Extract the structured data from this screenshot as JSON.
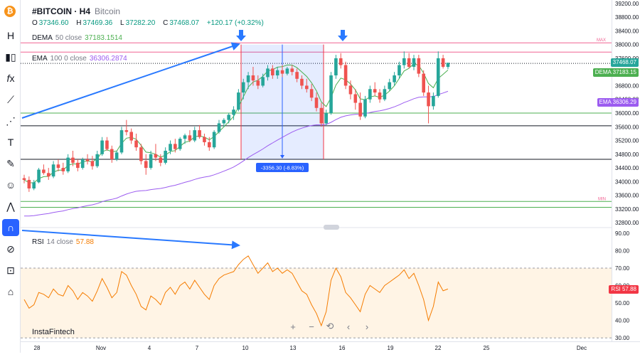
{
  "header": {
    "symbol": "#BITCOIN · H4",
    "description": "Bitcoin",
    "ohlc": [
      {
        "k": "O",
        "v": "37346.60"
      },
      {
        "k": "H",
        "v": "37469.36"
      },
      {
        "k": "L",
        "v": "37282.20"
      },
      {
        "k": "C",
        "v": "37468.07"
      }
    ],
    "change": "+120.17 (+0.32%)"
  },
  "legends": {
    "dema": {
      "name": "DEMA",
      "params": "50 close",
      "value": "37183.1514",
      "color": "#4caf50"
    },
    "ema": {
      "name": "EMA",
      "params": "100 0 close",
      "value": "36306.2874",
      "color": "#9c5cf0"
    },
    "rsi": {
      "name": "RSI",
      "params": "14 close",
      "value": "57.88",
      "color": "#f57c00"
    }
  },
  "brand": "InstaFintech",
  "toolbar": [
    "bitcoin-logo",
    "timeframe-icon",
    "candles-icon",
    "fx-icon",
    "trendline-icon",
    "fib-icon",
    "text-icon",
    "brush-icon",
    "emoji-icon",
    "pattern-icon",
    "magnet-icon",
    "eye-off-icon",
    "lock-icon",
    "trash-icon"
  ],
  "measure_label": "-3356.30 (-8.83%)",
  "level_labels": {
    "max": "MAX",
    "min": "MIN"
  },
  "price_tags": [
    {
      "name": "last-price",
      "label": "37468.07",
      "value": 37468.07,
      "color": "#26a69a"
    },
    {
      "name": "dema",
      "label": "DEMA    37183.15",
      "value": 37183.15,
      "color": "#4caf50"
    },
    {
      "name": "ema",
      "label": "EMA    36306.29",
      "value": 36306.29,
      "color": "#9c5cf0"
    }
  ],
  "rsi_tag": {
    "label": "RSI    57.88",
    "value": 57.88,
    "color": "#f23645"
  },
  "zoom_controls": [
    "+",
    "−",
    "⟲",
    "‹",
    "›"
  ],
  "chart_data": {
    "type": "candlestick",
    "price_axis": {
      "ticks": [
        32800,
        33200,
        33600,
        34000,
        34400,
        34800,
        35200,
        35600,
        36000,
        36400,
        36800,
        37200,
        37600,
        38000,
        38400,
        38800,
        39200
      ],
      "ylim": [
        32700,
        39300
      ]
    },
    "rsi_axis": {
      "ticks": [
        30,
        40,
        50,
        60,
        70,
        80,
        90
      ],
      "ylim": [
        28,
        92
      ],
      "bands": [
        30,
        70
      ]
    },
    "x_ticks": [
      "28",
      "Nov",
      "4",
      "7",
      "10",
      "13",
      "16",
      "19",
      "22",
      "25",
      "Dec"
    ],
    "horizontal_levels": [
      {
        "price": 38050,
        "label": "MAX",
        "color": "#f06292"
      },
      {
        "price": 37780,
        "color": "#f06292"
      },
      {
        "price": 37450,
        "color": "#131722",
        "dotted": true
      },
      {
        "price": 36000,
        "color": "#4caf50"
      },
      {
        "price": 35630,
        "color": "#131722"
      },
      {
        "price": 34650,
        "color": "#131722"
      },
      {
        "price": 33420,
        "label": "MIN",
        "color": "#4caf50"
      },
      {
        "price": 33250,
        "color": "#4caf50"
      }
    ],
    "measurement": {
      "from": 38000,
      "to": 34650,
      "label": "-3356.30 (-8.83%)"
    },
    "candles": [
      [
        34100,
        34200,
        33950,
        34050
      ],
      [
        34050,
        34150,
        33700,
        33800
      ],
      [
        33800,
        34050,
        33750,
        33980
      ],
      [
        33980,
        34400,
        33950,
        34350
      ],
      [
        34350,
        34500,
        34200,
        34250
      ],
      [
        34250,
        34400,
        34050,
        34150
      ],
      [
        34150,
        34600,
        34100,
        34500
      ],
      [
        34500,
        34650,
        34300,
        34400
      ],
      [
        34400,
        34550,
        34200,
        34300
      ],
      [
        34300,
        34800,
        34250,
        34700
      ],
      [
        34700,
        34900,
        34450,
        34550
      ],
      [
        34550,
        34650,
        34300,
        34400
      ],
      [
        34400,
        34700,
        34350,
        34650
      ],
      [
        34650,
        34800,
        34500,
        34600
      ],
      [
        34600,
        34750,
        34350,
        34450
      ],
      [
        34450,
        34900,
        34400,
        34800
      ],
      [
        34800,
        35300,
        34750,
        35200
      ],
      [
        35200,
        35300,
        34900,
        34950
      ],
      [
        34950,
        35050,
        34550,
        34650
      ],
      [
        34650,
        34900,
        34600,
        34850
      ],
      [
        34850,
        35600,
        34800,
        35500
      ],
      [
        35500,
        35800,
        35350,
        35450
      ],
      [
        35450,
        35550,
        35100,
        35200
      ],
      [
        35200,
        35400,
        34900,
        35000
      ],
      [
        35000,
        35100,
        34500,
        34600
      ],
      [
        34600,
        34800,
        34200,
        34400
      ],
      [
        34400,
        34900,
        34350,
        34800
      ],
      [
        34800,
        35100,
        34600,
        34700
      ],
      [
        34700,
        34800,
        34450,
        34550
      ],
      [
        34550,
        35000,
        34500,
        34900
      ],
      [
        34900,
        35200,
        34800,
        35100
      ],
      [
        35100,
        35250,
        34850,
        34950
      ],
      [
        34950,
        35300,
        34900,
        35250
      ],
      [
        35250,
        35400,
        35100,
        35350
      ],
      [
        35350,
        35500,
        35150,
        35200
      ],
      [
        35200,
        35600,
        35150,
        35500
      ],
      [
        35500,
        35650,
        35250,
        35300
      ],
      [
        35300,
        35400,
        35050,
        35150
      ],
      [
        35150,
        35300,
        34900,
        35000
      ],
      [
        35000,
        35500,
        34950,
        35450
      ],
      [
        35450,
        35800,
        35400,
        35700
      ],
      [
        35700,
        35850,
        35600,
        35800
      ],
      [
        35800,
        36000,
        35700,
        35950
      ],
      [
        35950,
        36200,
        35800,
        36100
      ],
      [
        36100,
        36700,
        36050,
        36600
      ],
      [
        36600,
        37000,
        36400,
        36900
      ],
      [
        36900,
        37200,
        36700,
        37100
      ],
      [
        37100,
        37350,
        36800,
        36950
      ],
      [
        36950,
        37100,
        36700,
        36800
      ],
      [
        36800,
        37150,
        36750,
        37050
      ],
      [
        37050,
        37400,
        36950,
        37300
      ],
      [
        37300,
        37400,
        37000,
        37100
      ],
      [
        37100,
        37350,
        37000,
        37250
      ],
      [
        37250,
        37400,
        37050,
        37150
      ],
      [
        37150,
        37350,
        37100,
        37300
      ],
      [
        37300,
        37400,
        37100,
        37200
      ],
      [
        37200,
        37300,
        36900,
        37000
      ],
      [
        37000,
        37100,
        36700,
        36800
      ],
      [
        36800,
        37000,
        36600,
        36700
      ],
      [
        36700,
        36850,
        36350,
        36450
      ],
      [
        36450,
        36600,
        36050,
        36150
      ],
      [
        36150,
        36300,
        35600,
        35700
      ],
      [
        35700,
        36100,
        35650,
        36000
      ],
      [
        36000,
        37200,
        35950,
        37100
      ],
      [
        37100,
        37700,
        37000,
        37600
      ],
      [
        37600,
        37750,
        37300,
        37400
      ],
      [
        37400,
        37500,
        36700,
        36800
      ],
      [
        36800,
        36950,
        36400,
        36550
      ],
      [
        36550,
        36700,
        36100,
        36300
      ],
      [
        36300,
        36600,
        35800,
        35900
      ],
      [
        35900,
        36500,
        35850,
        36400
      ],
      [
        36400,
        36800,
        36300,
        36700
      ],
      [
        36700,
        36900,
        36500,
        36600
      ],
      [
        36600,
        36700,
        36300,
        36400
      ],
      [
        36400,
        36800,
        36350,
        36700
      ],
      [
        36700,
        37000,
        36650,
        36900
      ],
      [
        36900,
        37200,
        36800,
        37100
      ],
      [
        37100,
        37500,
        37000,
        37400
      ],
      [
        37400,
        37800,
        37300,
        37600
      ],
      [
        37600,
        37750,
        37300,
        37350
      ],
      [
        37350,
        37700,
        37250,
        37600
      ],
      [
        37600,
        37700,
        37050,
        37150
      ],
      [
        37150,
        37250,
        36500,
        36600
      ],
      [
        36600,
        36800,
        35700,
        36200
      ],
      [
        36200,
        36600,
        36100,
        36500
      ],
      [
        36500,
        37800,
        36450,
        37600
      ],
      [
        37600,
        37700,
        37300,
        37350
      ],
      [
        37346.6,
        37469.36,
        37282.2,
        37468.07
      ]
    ],
    "rsi_values": [
      52,
      47,
      49,
      56,
      55,
      53,
      58,
      55,
      54,
      60,
      57,
      52,
      56,
      54,
      51,
      57,
      64,
      59,
      53,
      56,
      68,
      66,
      60,
      55,
      48,
      46,
      54,
      52,
      49,
      56,
      59,
      55,
      60,
      62,
      58,
      63,
      59,
      55,
      52,
      60,
      64,
      66,
      67,
      68,
      72,
      75,
      77,
      72,
      67,
      70,
      73,
      68,
      70,
      67,
      69,
      67,
      62,
      57,
      55,
      49,
      44,
      37,
      45,
      63,
      70,
      65,
      56,
      53,
      49,
      45,
      55,
      60,
      58,
      56,
      60,
      62,
      64,
      66,
      69,
      64,
      67,
      60,
      52,
      40,
      48,
      62,
      57,
      58
    ]
  }
}
